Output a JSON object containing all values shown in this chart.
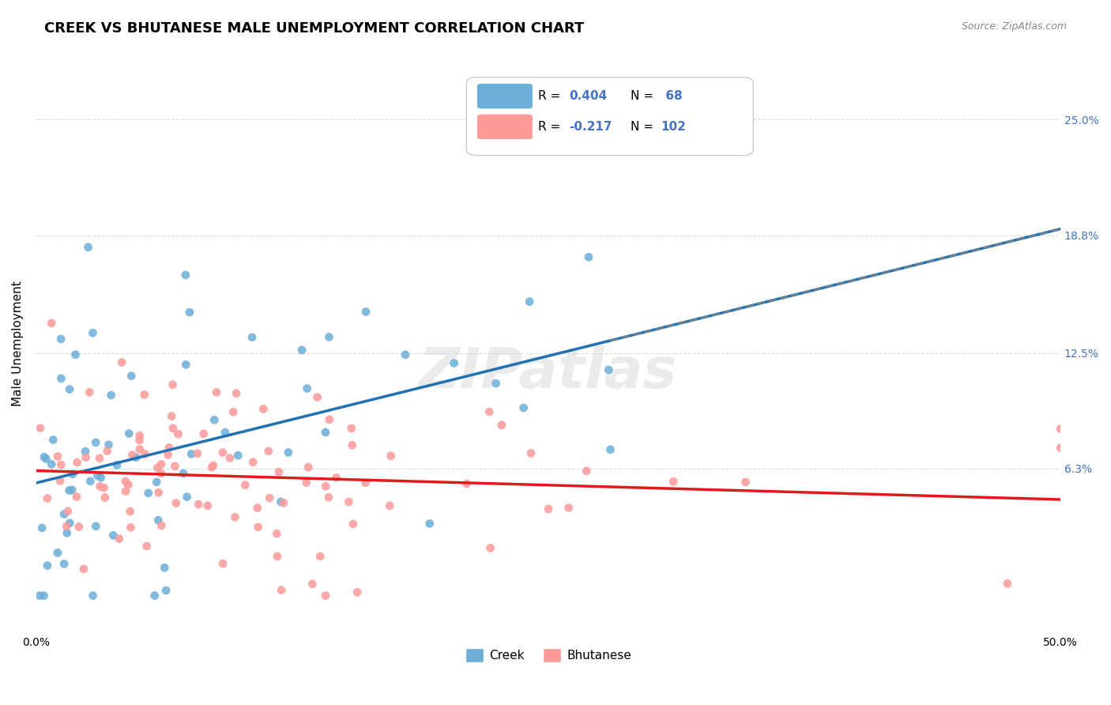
{
  "title": "CREEK VS BHUTANESE MALE UNEMPLOYMENT CORRELATION CHART",
  "source": "Source: ZipAtlas.com",
  "xlabel": "",
  "ylabel": "Male Unemployment",
  "xlim": [
    0.0,
    0.5
  ],
  "ylim": [
    -0.01,
    0.275
  ],
  "xtick_labels": [
    "0.0%",
    "50.0%"
  ],
  "xtick_positions": [
    0.0,
    0.5
  ],
  "ytick_labels": [
    "6.3%",
    "12.5%",
    "18.8%",
    "25.0%"
  ],
  "ytick_positions": [
    0.063,
    0.125,
    0.188,
    0.25
  ],
  "right_ytick_labels": [
    "6.3%",
    "12.5%",
    "18.8%",
    "25.0%"
  ],
  "creek_color": "#6baed6",
  "bhutanese_color": "#fb9a99",
  "creek_line_color": "#2171b5",
  "bhutanese_line_color": "#e31a1c",
  "trend_line_color": "#888888",
  "background_color": "#ffffff",
  "grid_color": "#cccccc",
  "legend_R_creek": "R = 0.404",
  "legend_N_creek": "N =  68",
  "legend_R_bhutanese": "R = -0.217",
  "legend_N_bhutanese": "N = 102",
  "creek_seed": 42,
  "bhutanese_seed": 123,
  "creek_n": 68,
  "bhutanese_n": 102,
  "creek_R": 0.404,
  "bhutanese_R": -0.217,
  "watermark": "ZIPatlas",
  "title_fontsize": 13,
  "label_fontsize": 11,
  "tick_fontsize": 10,
  "source_fontsize": 9
}
